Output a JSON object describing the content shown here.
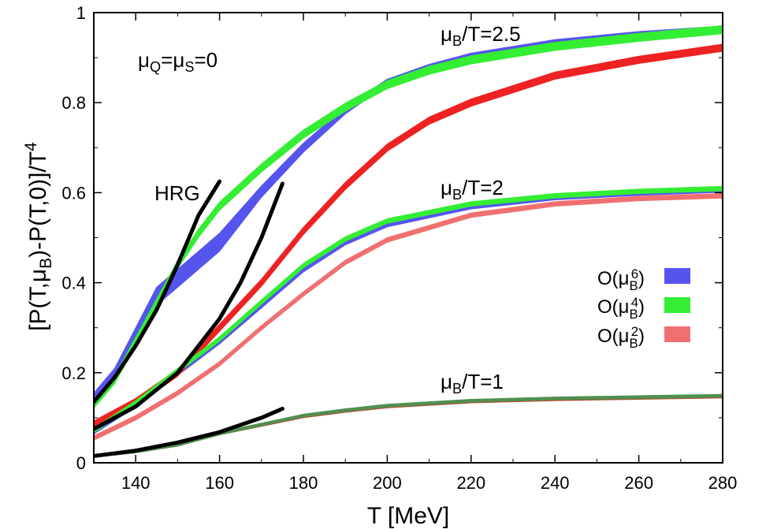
{
  "chart_data": {
    "type": "line",
    "xlabel": "T [MeV]",
    "ylabel": "[P(T,μB)-P(T,0)]/T4",
    "xlim": [
      130,
      280
    ],
    "ylim": [
      0,
      1.0
    ],
    "x_ticks": [
      140,
      160,
      180,
      200,
      220,
      240,
      260,
      280
    ],
    "y_ticks": [
      0,
      0.2,
      0.4,
      0.6,
      0.8,
      1
    ],
    "grid": false,
    "legend_position": "right",
    "colors": {
      "O6": "#5555ee",
      "O4": "#33ee33",
      "O2": "#ee2222",
      "O2_light": "#f07070",
      "HRG": "#000000"
    },
    "annotations": {
      "muQS": "μQ=μS=0",
      "hrg": "HRG",
      "mu25": "μB/T=2.5",
      "mu2": "μB/T=2",
      "mu1": "μB/T=1"
    },
    "legend": [
      {
        "label": "O(μB6)",
        "key": "O6"
      },
      {
        "label": "O(μB4)",
        "key": "O4"
      },
      {
        "label": "O(μB2)",
        "key": "O2"
      }
    ],
    "series": [
      {
        "mu": 2.5,
        "order": "O6",
        "x": [
          130,
          135,
          140,
          145,
          150,
          155,
          160,
          170,
          180,
          190,
          200,
          210,
          220,
          240,
          260,
          280
        ],
        "lower": [
          0.135,
          0.18,
          0.265,
          0.35,
          0.39,
          0.43,
          0.47,
          0.59,
          0.69,
          0.775,
          0.84,
          0.875,
          0.9,
          0.93,
          0.95,
          0.965
        ],
        "upper": [
          0.155,
          0.21,
          0.3,
          0.39,
          0.43,
          0.47,
          0.51,
          0.615,
          0.71,
          0.79,
          0.852,
          0.885,
          0.91,
          0.94,
          0.958,
          0.97
        ]
      },
      {
        "mu": 2.5,
        "order": "O4",
        "x": [
          130,
          135,
          140,
          145,
          150,
          155,
          160,
          170,
          180,
          190,
          200,
          210,
          220,
          240,
          260,
          280
        ],
        "y": [
          0.13,
          0.185,
          0.27,
          0.355,
          0.44,
          0.51,
          0.57,
          0.655,
          0.73,
          0.79,
          0.84,
          0.872,
          0.895,
          0.925,
          0.945,
          0.962
        ],
        "width": 0.018
      },
      {
        "mu": 2.5,
        "order": "O2",
        "x": [
          130,
          140,
          150,
          160,
          170,
          180,
          190,
          200,
          210,
          220,
          240,
          260,
          280
        ],
        "y": [
          0.085,
          0.135,
          0.2,
          0.3,
          0.4,
          0.515,
          0.615,
          0.7,
          0.76,
          0.8,
          0.86,
          0.895,
          0.922
        ],
        "width": 0.016
      },
      {
        "mu": 2,
        "order": "O6",
        "x": [
          130,
          140,
          150,
          160,
          170,
          180,
          190,
          200,
          220,
          240,
          260,
          280
        ],
        "y": [
          0.07,
          0.13,
          0.2,
          0.27,
          0.35,
          0.43,
          0.49,
          0.53,
          0.57,
          0.59,
          0.6,
          0.607
        ],
        "width": 0.012
      },
      {
        "mu": 2,
        "order": "O4",
        "x": [
          130,
          140,
          150,
          160,
          170,
          180,
          190,
          200,
          220,
          240,
          260,
          280
        ],
        "y": [
          0.072,
          0.133,
          0.205,
          0.275,
          0.357,
          0.438,
          0.497,
          0.537,
          0.575,
          0.593,
          0.603,
          0.609
        ],
        "width": 0.01
      },
      {
        "mu": 2,
        "order": "O2",
        "x": [
          130,
          140,
          150,
          160,
          170,
          180,
          190,
          200,
          220,
          240,
          260,
          280
        ],
        "y": [
          0.055,
          0.1,
          0.155,
          0.22,
          0.3,
          0.375,
          0.445,
          0.495,
          0.55,
          0.575,
          0.587,
          0.593
        ],
        "width": 0.01
      },
      {
        "mu": 1,
        "order": "O4",
        "x": [
          130,
          140,
          150,
          160,
          170,
          180,
          190,
          200,
          220,
          240,
          260,
          280
        ],
        "y": [
          0.015,
          0.025,
          0.04,
          0.065,
          0.085,
          0.105,
          0.117,
          0.127,
          0.138,
          0.143,
          0.146,
          0.149
        ],
        "width": 0.006
      },
      {
        "mu": 1,
        "order": "O2",
        "x": [
          130,
          140,
          150,
          160,
          170,
          180,
          190,
          200,
          220,
          240,
          260,
          280
        ],
        "y": [
          0.015,
          0.025,
          0.04,
          0.065,
          0.084,
          0.103,
          0.115,
          0.125,
          0.136,
          0.141,
          0.144,
          0.147
        ],
        "width": 0.006
      }
    ],
    "hrg_curves": [
      {
        "mu": 2.5,
        "x": [
          130,
          135,
          140,
          145,
          150,
          155,
          160
        ],
        "y": [
          0.135,
          0.19,
          0.26,
          0.34,
          0.44,
          0.55,
          0.625
        ]
      },
      {
        "mu": 2,
        "x": [
          130,
          140,
          150,
          160,
          165,
          170,
          175
        ],
        "y": [
          0.075,
          0.125,
          0.2,
          0.32,
          0.4,
          0.5,
          0.62
        ]
      },
      {
        "mu": 1,
        "x": [
          130,
          140,
          150,
          160,
          170,
          175
        ],
        "y": [
          0.015,
          0.027,
          0.045,
          0.068,
          0.1,
          0.12
        ]
      }
    ]
  }
}
